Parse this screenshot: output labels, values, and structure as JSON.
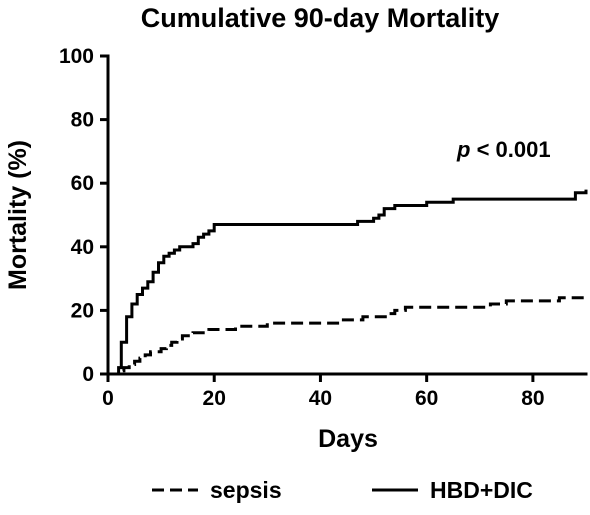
{
  "chart_data": {
    "type": "line",
    "title": "Cumulative 90-day Mortality",
    "xlabel": "Days",
    "ylabel": "Mortality (%)",
    "xlim": [
      0,
      90
    ],
    "ylim": [
      0,
      100
    ],
    "x_ticks": [
      0,
      20,
      40,
      60,
      80
    ],
    "y_ticks": [
      0,
      20,
      40,
      60,
      80,
      100
    ],
    "grid": false,
    "annotation": {
      "italic": "p",
      "rest": " < 0.001"
    },
    "legend_position": "bottom",
    "series": [
      {
        "name": "sepsis",
        "style": "dashed",
        "color": "#000000",
        "points": [
          [
            0,
            0
          ],
          [
            1,
            0
          ],
          [
            2,
            1
          ],
          [
            3,
            2
          ],
          [
            4,
            3
          ],
          [
            5,
            4
          ],
          [
            6,
            5
          ],
          [
            7,
            6
          ],
          [
            8,
            7
          ],
          [
            10,
            8
          ],
          [
            11,
            9
          ],
          [
            12,
            10
          ],
          [
            13,
            11
          ],
          [
            14,
            12
          ],
          [
            16,
            13
          ],
          [
            19,
            14
          ],
          [
            24,
            15
          ],
          [
            30,
            16
          ],
          [
            44,
            17
          ],
          [
            47,
            17
          ],
          [
            48,
            18
          ],
          [
            53,
            19
          ],
          [
            54,
            20
          ],
          [
            56,
            21
          ],
          [
            72,
            22
          ],
          [
            75,
            23
          ],
          [
            85,
            24
          ],
          [
            90,
            24
          ]
        ]
      },
      {
        "name": "HBD+DIC",
        "style": "solid",
        "color": "#000000",
        "points": [
          [
            0,
            0
          ],
          [
            1,
            0
          ],
          [
            2,
            2
          ],
          [
            2.5,
            10
          ],
          [
            3.5,
            18
          ],
          [
            4.5,
            22
          ],
          [
            5.5,
            25
          ],
          [
            6.5,
            27
          ],
          [
            7.5,
            29
          ],
          [
            8.5,
            32
          ],
          [
            9.5,
            35
          ],
          [
            10.5,
            37
          ],
          [
            11.5,
            38
          ],
          [
            12.5,
            39
          ],
          [
            13.5,
            40
          ],
          [
            16,
            41
          ],
          [
            17,
            43
          ],
          [
            18,
            44
          ],
          [
            19,
            45
          ],
          [
            20,
            47
          ],
          [
            46,
            47
          ],
          [
            47,
            48
          ],
          [
            50,
            49
          ],
          [
            51,
            50
          ],
          [
            52,
            52
          ],
          [
            54,
            53
          ],
          [
            60,
            54
          ],
          [
            65,
            55
          ],
          [
            79,
            55
          ],
          [
            88,
            57
          ],
          [
            90,
            58
          ]
        ]
      }
    ]
  }
}
